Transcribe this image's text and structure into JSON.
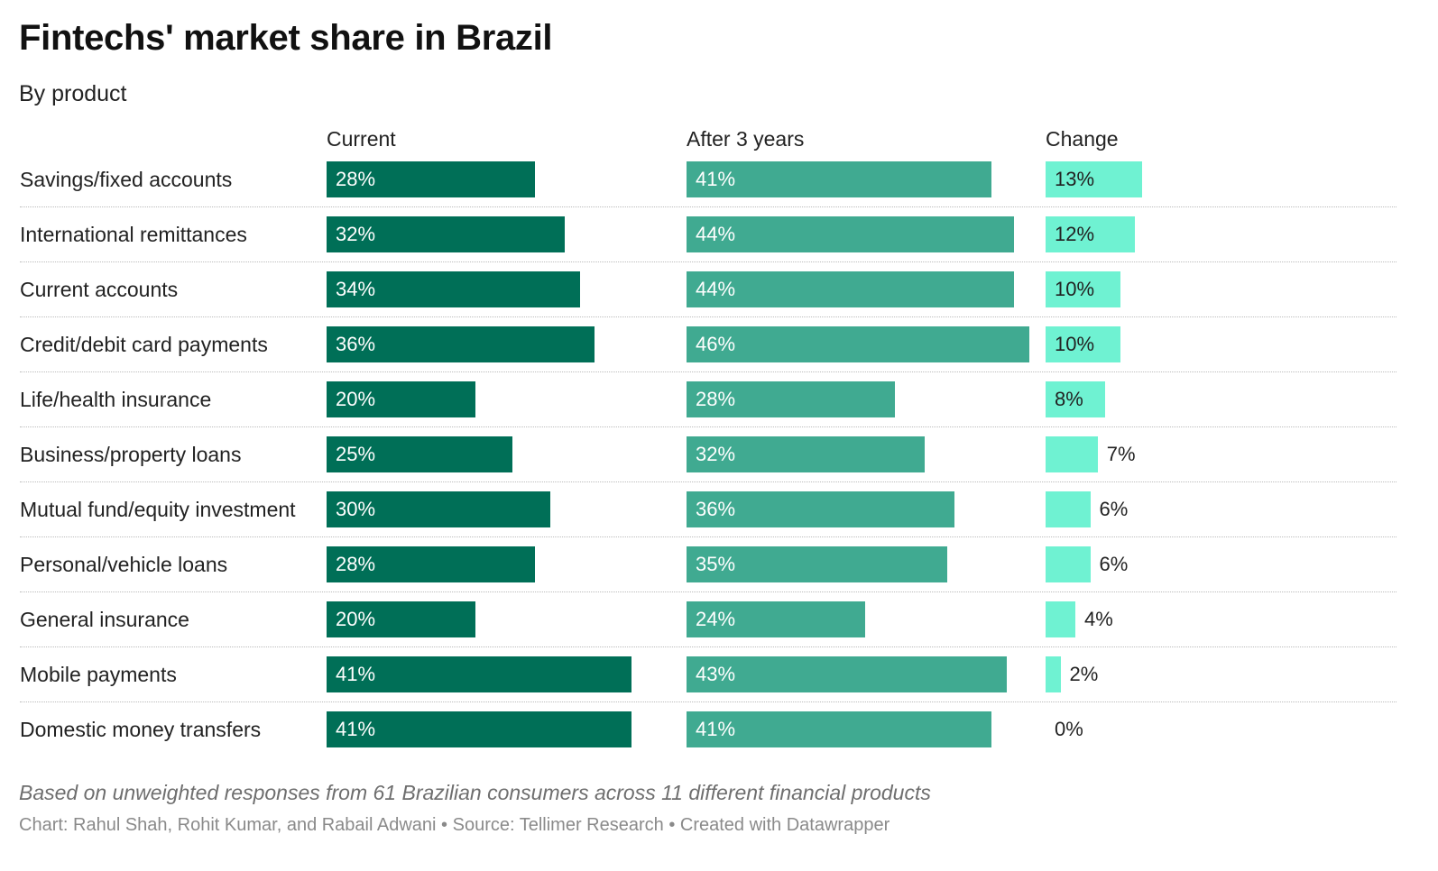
{
  "header": {
    "title": "Fintechs' market share in Brazil",
    "subtitle": "By product"
  },
  "footer": {
    "note": "Based on unweighted responses from 61 Brazilian consumers across 11 different financial products",
    "credit": "Chart: Rahul Shah, Rohit Kumar, and Rabail Adwani • Source: Tellimer Research • Created with Datawrapper"
  },
  "colors": {
    "current": "#006f57",
    "after": "#40aa91",
    "change": "#6ff2d2"
  },
  "chart_data": {
    "type": "bar",
    "title": "Fintechs' market share in Brazil",
    "subtitle": "By product",
    "columns": [
      "Current",
      "After 3 years",
      "Change"
    ],
    "categories": [
      "Savings/fixed accounts",
      "International remittances",
      "Current accounts",
      "Credit/debit card payments",
      "Life/health insurance",
      "Business/property loans",
      "Mutual fund/equity investment",
      "Personal/vehicle loans",
      "General insurance",
      "Mobile payments",
      "Domestic money transfers"
    ],
    "series": [
      {
        "name": "Current",
        "values": [
          28,
          32,
          34,
          36,
          20,
          25,
          30,
          28,
          20,
          41,
          41
        ],
        "labels": [
          "28%",
          "32%",
          "34%",
          "36%",
          "20%",
          "25%",
          "30%",
          "28%",
          "20%",
          "41%",
          "41%"
        ]
      },
      {
        "name": "After 3 years",
        "values": [
          41,
          44,
          44,
          46,
          28,
          32,
          36,
          35,
          24,
          43,
          41
        ],
        "labels": [
          "41%",
          "44%",
          "44%",
          "46%",
          "28%",
          "32%",
          "36%",
          "35%",
          "24%",
          "43%",
          "41%"
        ]
      },
      {
        "name": "Change",
        "values": [
          13,
          12,
          10,
          10,
          8,
          7,
          6,
          6,
          4,
          2,
          0
        ],
        "labels": [
          "13%",
          "12%",
          "10%",
          "10%",
          "8%",
          "7%",
          "6%",
          "6%",
          "4%",
          "2%",
          "0%"
        ]
      }
    ],
    "unit": "%"
  }
}
